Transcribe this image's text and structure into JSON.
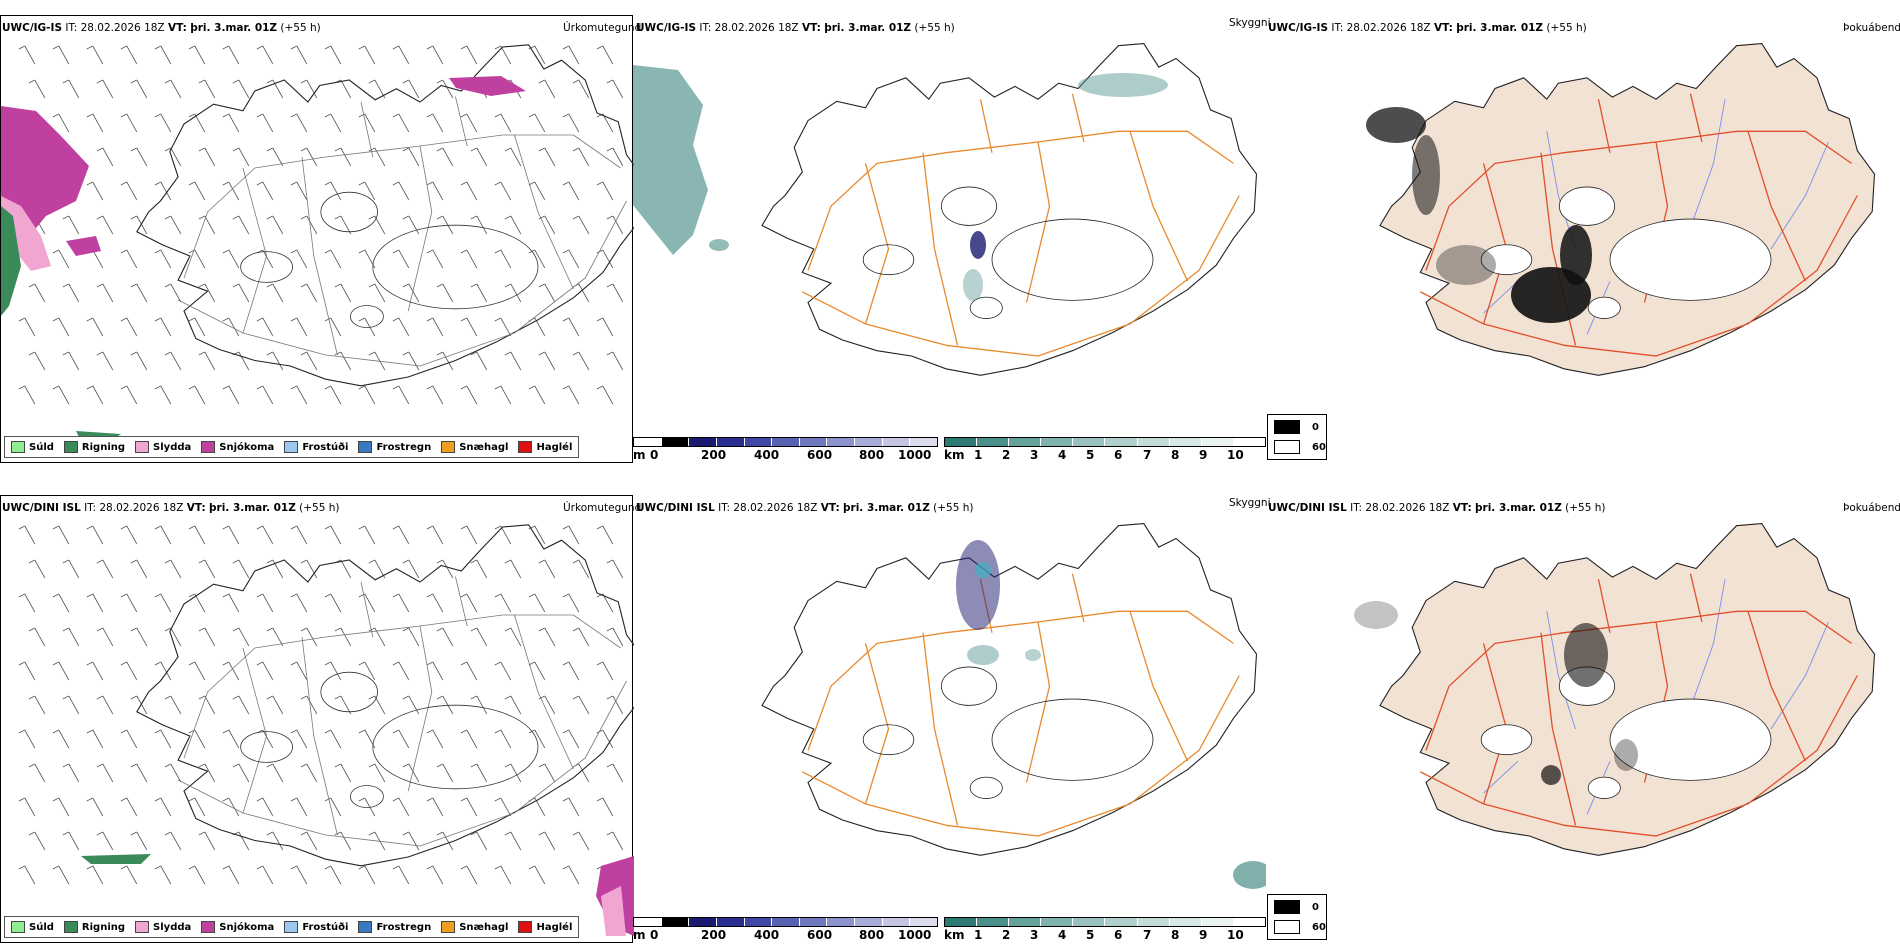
{
  "panels": {
    "r0c0": {
      "model": "UWC/IG-IS",
      "it_label": "IT:",
      "it": "28.02.2026 18Z",
      "vt_label": "VT:",
      "vt": "þri. 3.mar. 01Z",
      "lead": "(+55 h)",
      "right": "Úrkomutegund"
    },
    "r0c1": {
      "model": "UWC/IG-IS",
      "it_label": "IT:",
      "it": "28.02.2026 18Z",
      "vt_label": "VT:",
      "vt": "þri. 3.mar. 01Z",
      "lead": "(+55 h)",
      "right": "Skyggni"
    },
    "r0c2": {
      "model": "UWC/IG-IS",
      "it_label": "IT:",
      "it": "28.02.2026 18Z",
      "vt_label": "VT:",
      "vt": "þri. 3.mar. 01Z",
      "lead": "(+55 h)",
      "right": "Þokuábendi"
    },
    "r1c0": {
      "model": "UWC/DINI ISL",
      "it_label": "IT:",
      "it": "28.02.2026 18Z",
      "vt_label": "VT:",
      "vt": "þri. 3.mar. 01Z",
      "lead": "(+55 h)",
      "right": "Úrkomutegund"
    },
    "r1c1": {
      "model": "UWC/DINI ISL",
      "it_label": "IT:",
      "it": "28.02.2026 18Z",
      "vt_label": "VT:",
      "vt": "þri. 3.mar. 01Z",
      "lead": "(+55 h)",
      "right": "Skyggni"
    },
    "r1c2": {
      "model": "UWC/DINI ISL",
      "it_label": "IT:",
      "it": "28.02.2026 18Z",
      "vt_label": "VT:",
      "vt": "þri. 3.mar. 01Z",
      "lead": "(+55 h)",
      "right": "Þokuábendi"
    }
  },
  "precip_legend": [
    {
      "label": "Súld",
      "color": "#90ee90"
    },
    {
      "label": "Rigning",
      "color": "#3a8a5a"
    },
    {
      "label": "Slydda",
      "color": "#f0a6d0"
    },
    {
      "label": "Snjókoma",
      "color": "#c040a0"
    },
    {
      "label": "Frostúði",
      "color": "#9cc8f0"
    },
    {
      "label": "Frostregn",
      "color": "#3a78c0"
    },
    {
      "label": "Snæhagl",
      "color": "#f0a020"
    },
    {
      "label": "Haglél",
      "color": "#e01010"
    }
  ],
  "ceiling_bar": {
    "unit": "m",
    "ticks": [
      "0",
      "200",
      "400",
      "600",
      "800",
      "1000"
    ],
    "colors": [
      "#ffffff",
      "#000000",
      "#1a1a70",
      "#2a2e92",
      "#4048a6",
      "#5a62b4",
      "#7078c0",
      "#8c92cc",
      "#a8acd8",
      "#c4c6e4",
      "#dcdcef"
    ]
  },
  "visibility_bar": {
    "unit": "km",
    "ticks": [
      "1",
      "2",
      "3",
      "4",
      "5",
      "6",
      "7",
      "8",
      "9",
      "10"
    ],
    "colors": [
      "#2e7b76",
      "#4a8f89",
      "#66a29c",
      "#80b3ae",
      "#98c2be",
      "#afd0cc",
      "#c4dcd9",
      "#d8e8e6",
      "#eaf2f1",
      "#ffffff"
    ]
  },
  "fog_legend": {
    "items": [
      {
        "label": "0",
        "color": "#000000"
      },
      {
        "label": "60",
        "color": "#ffffff"
      }
    ]
  },
  "map_colors": {
    "coast": "#222222",
    "roads_vis": "#e88a2e",
    "roads_fog": "#e0502a",
    "rivers": "#7a8cf0",
    "land_fog": "#f2e2d4",
    "wind": "#555555",
    "fog_dark": "#111111"
  }
}
